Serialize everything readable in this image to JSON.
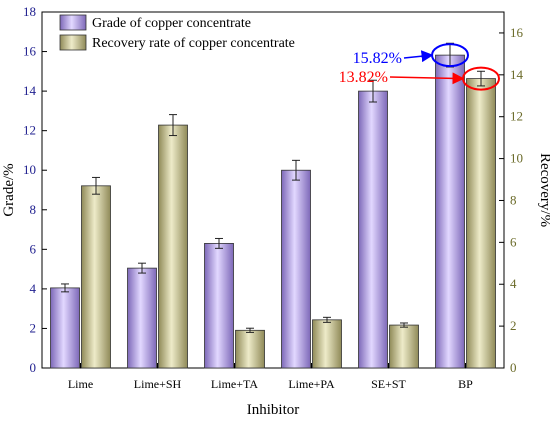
{
  "chart_data": {
    "type": "bar",
    "xlabel": "Inhibitor",
    "ylabel_left": "Grade/%",
    "ylabel_right": "Recovery/%",
    "categories": [
      "Lime",
      "Lime+SH",
      "Lime+TA",
      "Lime+PA",
      "SE+ST",
      "BP"
    ],
    "ylim_left": [
      0,
      18
    ],
    "ylim_right": [
      0,
      17
    ],
    "yticks_left": [
      0,
      2,
      4,
      6,
      8,
      10,
      12,
      14,
      16,
      18
    ],
    "yticks_right": [
      0,
      2,
      4,
      6,
      8,
      10,
      12,
      14,
      16
    ],
    "series": [
      {
        "name": "Grade of copper concentrate",
        "axis": "left",
        "color": "#a48fd8",
        "values": [
          4.05,
          5.05,
          6.3,
          10.0,
          14.0,
          15.82
        ],
        "errors": [
          0.2,
          0.25,
          0.25,
          0.5,
          0.55,
          0.6
        ]
      },
      {
        "name": "Recovery rate of copper concentrate",
        "axis": "right",
        "color": "#bdb886",
        "values": [
          8.7,
          11.6,
          1.8,
          2.3,
          2.05,
          13.82
        ],
        "errors": [
          0.4,
          0.5,
          0.1,
          0.12,
          0.1,
          0.35
        ]
      }
    ],
    "annotations": [
      {
        "text": "15.82%",
        "color": "#0000ff",
        "series": 0,
        "category": 5
      },
      {
        "text": "13.82%",
        "color": "#ff0000",
        "series": 1,
        "category": 5
      }
    ],
    "grid": false,
    "legend_position": "top-left"
  }
}
